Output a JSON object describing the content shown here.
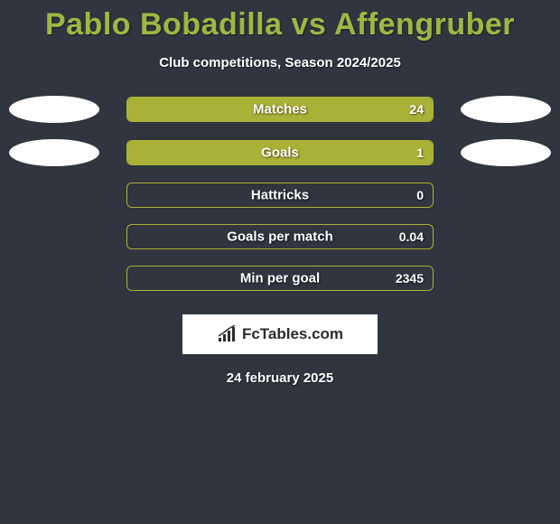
{
  "title": "Pablo Bobadilla vs Affengruber",
  "subtitle": "Club competitions, Season 2024/2025",
  "colors": {
    "background": "#30353f",
    "accent": "#aab137",
    "title": "#9ab942",
    "text": "#ffffff",
    "ellipse": "#ffffff"
  },
  "rows": [
    {
      "label": "Matches",
      "value_right": "24",
      "left_fill_pct": 0,
      "right_fill_pct": 100,
      "show_ellipses": true
    },
    {
      "label": "Goals",
      "value_right": "1",
      "left_fill_pct": 0,
      "right_fill_pct": 100,
      "show_ellipses": true
    },
    {
      "label": "Hattricks",
      "value_right": "0",
      "left_fill_pct": 0,
      "right_fill_pct": 0,
      "show_ellipses": false
    },
    {
      "label": "Goals per match",
      "value_right": "0.04",
      "left_fill_pct": 0,
      "right_fill_pct": 0,
      "show_ellipses": false
    },
    {
      "label": "Min per goal",
      "value_right": "2345",
      "left_fill_pct": 0,
      "right_fill_pct": 0,
      "show_ellipses": false
    }
  ],
  "logo_text": "FcTables.com",
  "date": "24 february 2025"
}
